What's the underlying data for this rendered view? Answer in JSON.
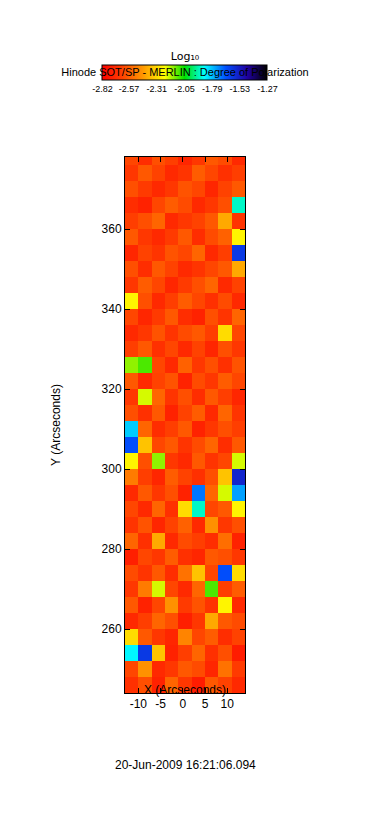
{
  "chart_data": {
    "type": "heatmap",
    "title": "Hinode SOT/SP - MERLIN : Degree of Polarization",
    "xlabel": "X (Arcseconds)",
    "ylabel": "Y (Arcseconds)",
    "annotations": [
      "20-Jun-2009 16:21:06.094"
    ],
    "xlim": [
      -13,
      14
    ],
    "ylim": [
      244,
      378
    ],
    "xticks": [
      -10,
      -5,
      0,
      5,
      10
    ],
    "yticks": [
      260,
      280,
      300,
      320,
      340,
      360
    ],
    "grid": false,
    "colorbar": {
      "title": "Log₁₀",
      "range": [
        -2.82,
        -1.27
      ],
      "ticks": [
        -2.82,
        -2.57,
        -2.31,
        -2.05,
        -1.79,
        -1.53,
        -1.27
      ]
    },
    "x": [
      -11.5,
      -8.5,
      -5.5,
      -2.5,
      0.5,
      3.5,
      6.5,
      9.5,
      12.5
    ],
    "y": [
      246,
      250,
      254,
      258,
      262,
      266,
      270,
      274,
      278,
      282,
      286,
      290,
      294,
      298,
      302,
      306,
      310,
      314,
      318,
      322,
      326,
      330,
      334,
      338,
      342,
      346,
      350,
      354,
      358,
      362,
      366,
      370,
      374,
      378
    ],
    "z": [
      [
        -2.68,
        -2.6,
        -2.72,
        -2.55,
        -2.66,
        -2.74,
        -2.58,
        -2.63,
        -2.7
      ],
      [
        -2.62,
        -2.45,
        -2.7,
        -2.66,
        -2.58,
        -2.61,
        -2.71,
        -2.52,
        -2.65
      ],
      [
        -1.85,
        -1.6,
        -2.35,
        -2.72,
        -2.64,
        -2.55,
        -2.68,
        -2.6,
        -2.74
      ],
      [
        -2.3,
        -2.58,
        -2.66,
        -2.71,
        -2.48,
        -2.62,
        -2.57,
        -2.69,
        -2.63
      ],
      [
        -2.7,
        -2.64,
        -2.55,
        -2.6,
        -2.73,
        -2.66,
        -2.4,
        -2.58,
        -2.61
      ],
      [
        -2.58,
        -2.72,
        -2.62,
        -2.45,
        -2.65,
        -2.59,
        -2.67,
        -2.25,
        -2.7
      ],
      [
        -2.66,
        -2.5,
        -2.2,
        -2.62,
        -2.7,
        -2.55,
        -2.1,
        -2.64,
        -2.57
      ],
      [
        -2.61,
        -2.67,
        -2.58,
        -2.69,
        -2.52,
        -2.35,
        -2.62,
        -1.65,
        -2.3
      ],
      [
        -2.73,
        -2.62,
        -2.66,
        -2.57,
        -2.68,
        -2.71,
        -2.58,
        -2.6,
        -2.66
      ],
      [
        -2.55,
        -2.68,
        -2.4,
        -2.7,
        -2.61,
        -2.64,
        -2.69,
        -2.53,
        -2.72
      ],
      [
        -2.67,
        -2.59,
        -2.71,
        -2.63,
        -2.56,
        -2.7,
        -2.45,
        -2.66,
        -2.6
      ],
      [
        -2.62,
        -2.7,
        -2.55,
        -2.68,
        -2.3,
        -1.9,
        -2.62,
        -2.58,
        -2.25
      ],
      [
        -2.7,
        -2.58,
        -2.66,
        -2.6,
        -2.72,
        -1.7,
        -2.55,
        -2.2,
        -1.75
      ],
      [
        -2.5,
        -2.64,
        -2.71,
        -2.57,
        -2.63,
        -2.68,
        -2.6,
        -2.35,
        -1.55
      ],
      [
        -2.25,
        -2.6,
        -2.15,
        -2.66,
        -2.7,
        -2.58,
        -2.67,
        -2.62,
        -2.2
      ],
      [
        -1.65,
        -2.35,
        -2.62,
        -2.58,
        -2.67,
        -2.61,
        -2.55,
        -2.69,
        -2.58
      ],
      [
        -1.8,
        -2.55,
        -2.69,
        -2.64,
        -2.58,
        -2.72,
        -2.66,
        -2.6,
        -2.64
      ],
      [
        -2.6,
        -2.68,
        -2.58,
        -2.72,
        -2.63,
        -2.57,
        -2.7,
        -2.55,
        -2.67
      ],
      [
        -2.66,
        -2.2,
        -2.55,
        -2.67,
        -2.6,
        -2.69,
        -2.58,
        -2.64,
        -2.71
      ],
      [
        -2.58,
        -2.7,
        -2.63,
        -2.59,
        -2.72,
        -2.61,
        -2.66,
        -2.57,
        -2.62
      ],
      [
        -2.15,
        -2.1,
        -2.62,
        -2.7,
        -2.56,
        -2.66,
        -2.6,
        -2.68,
        -2.59
      ],
      [
        -2.64,
        -2.58,
        -2.68,
        -2.62,
        -2.7,
        -2.63,
        -2.71,
        -2.6,
        -2.66
      ],
      [
        -2.7,
        -2.66,
        -2.59,
        -2.67,
        -2.61,
        -2.58,
        -2.64,
        -2.3,
        -2.62
      ],
      [
        -2.62,
        -2.71,
        -2.65,
        -2.58,
        -2.69,
        -2.72,
        -2.6,
        -2.67,
        -2.55
      ],
      [
        -2.25,
        -2.6,
        -2.7,
        -2.64,
        -2.57,
        -2.62,
        -2.68,
        -2.61,
        -2.7
      ],
      [
        -2.66,
        -2.57,
        -2.62,
        -2.71,
        -2.65,
        -2.6,
        -2.55,
        -2.7,
        -2.63
      ],
      [
        -2.6,
        -2.69,
        -2.58,
        -2.63,
        -2.7,
        -2.67,
        -2.62,
        -2.58,
        -2.4
      ],
      [
        -2.71,
        -2.63,
        -2.67,
        -2.59,
        -2.62,
        -2.55,
        -2.7,
        -2.64,
        -1.6
      ],
      [
        -2.58,
        -2.66,
        -2.7,
        -2.65,
        -2.58,
        -2.69,
        -2.61,
        -2.56,
        -2.25
      ],
      [
        -2.64,
        -2.6,
        -2.55,
        -2.7,
        -2.66,
        -2.63,
        -2.58,
        -2.4,
        -2.67
      ],
      [
        -2.69,
        -2.72,
        -2.62,
        -2.57,
        -2.61,
        -2.7,
        -2.66,
        -2.6,
        -1.9
      ],
      [
        -2.6,
        -2.65,
        -2.7,
        -2.66,
        -2.59,
        -2.62,
        -2.71,
        -2.63,
        -2.58
      ],
      [
        -2.66,
        -2.58,
        -2.63,
        -2.7,
        -2.67,
        -2.57,
        -2.62,
        -2.68,
        -2.64
      ],
      [
        -2.62,
        -2.69,
        -2.6,
        -2.64,
        -2.71,
        -2.66,
        -2.58,
        -2.61,
        -2.7
      ]
    ]
  }
}
